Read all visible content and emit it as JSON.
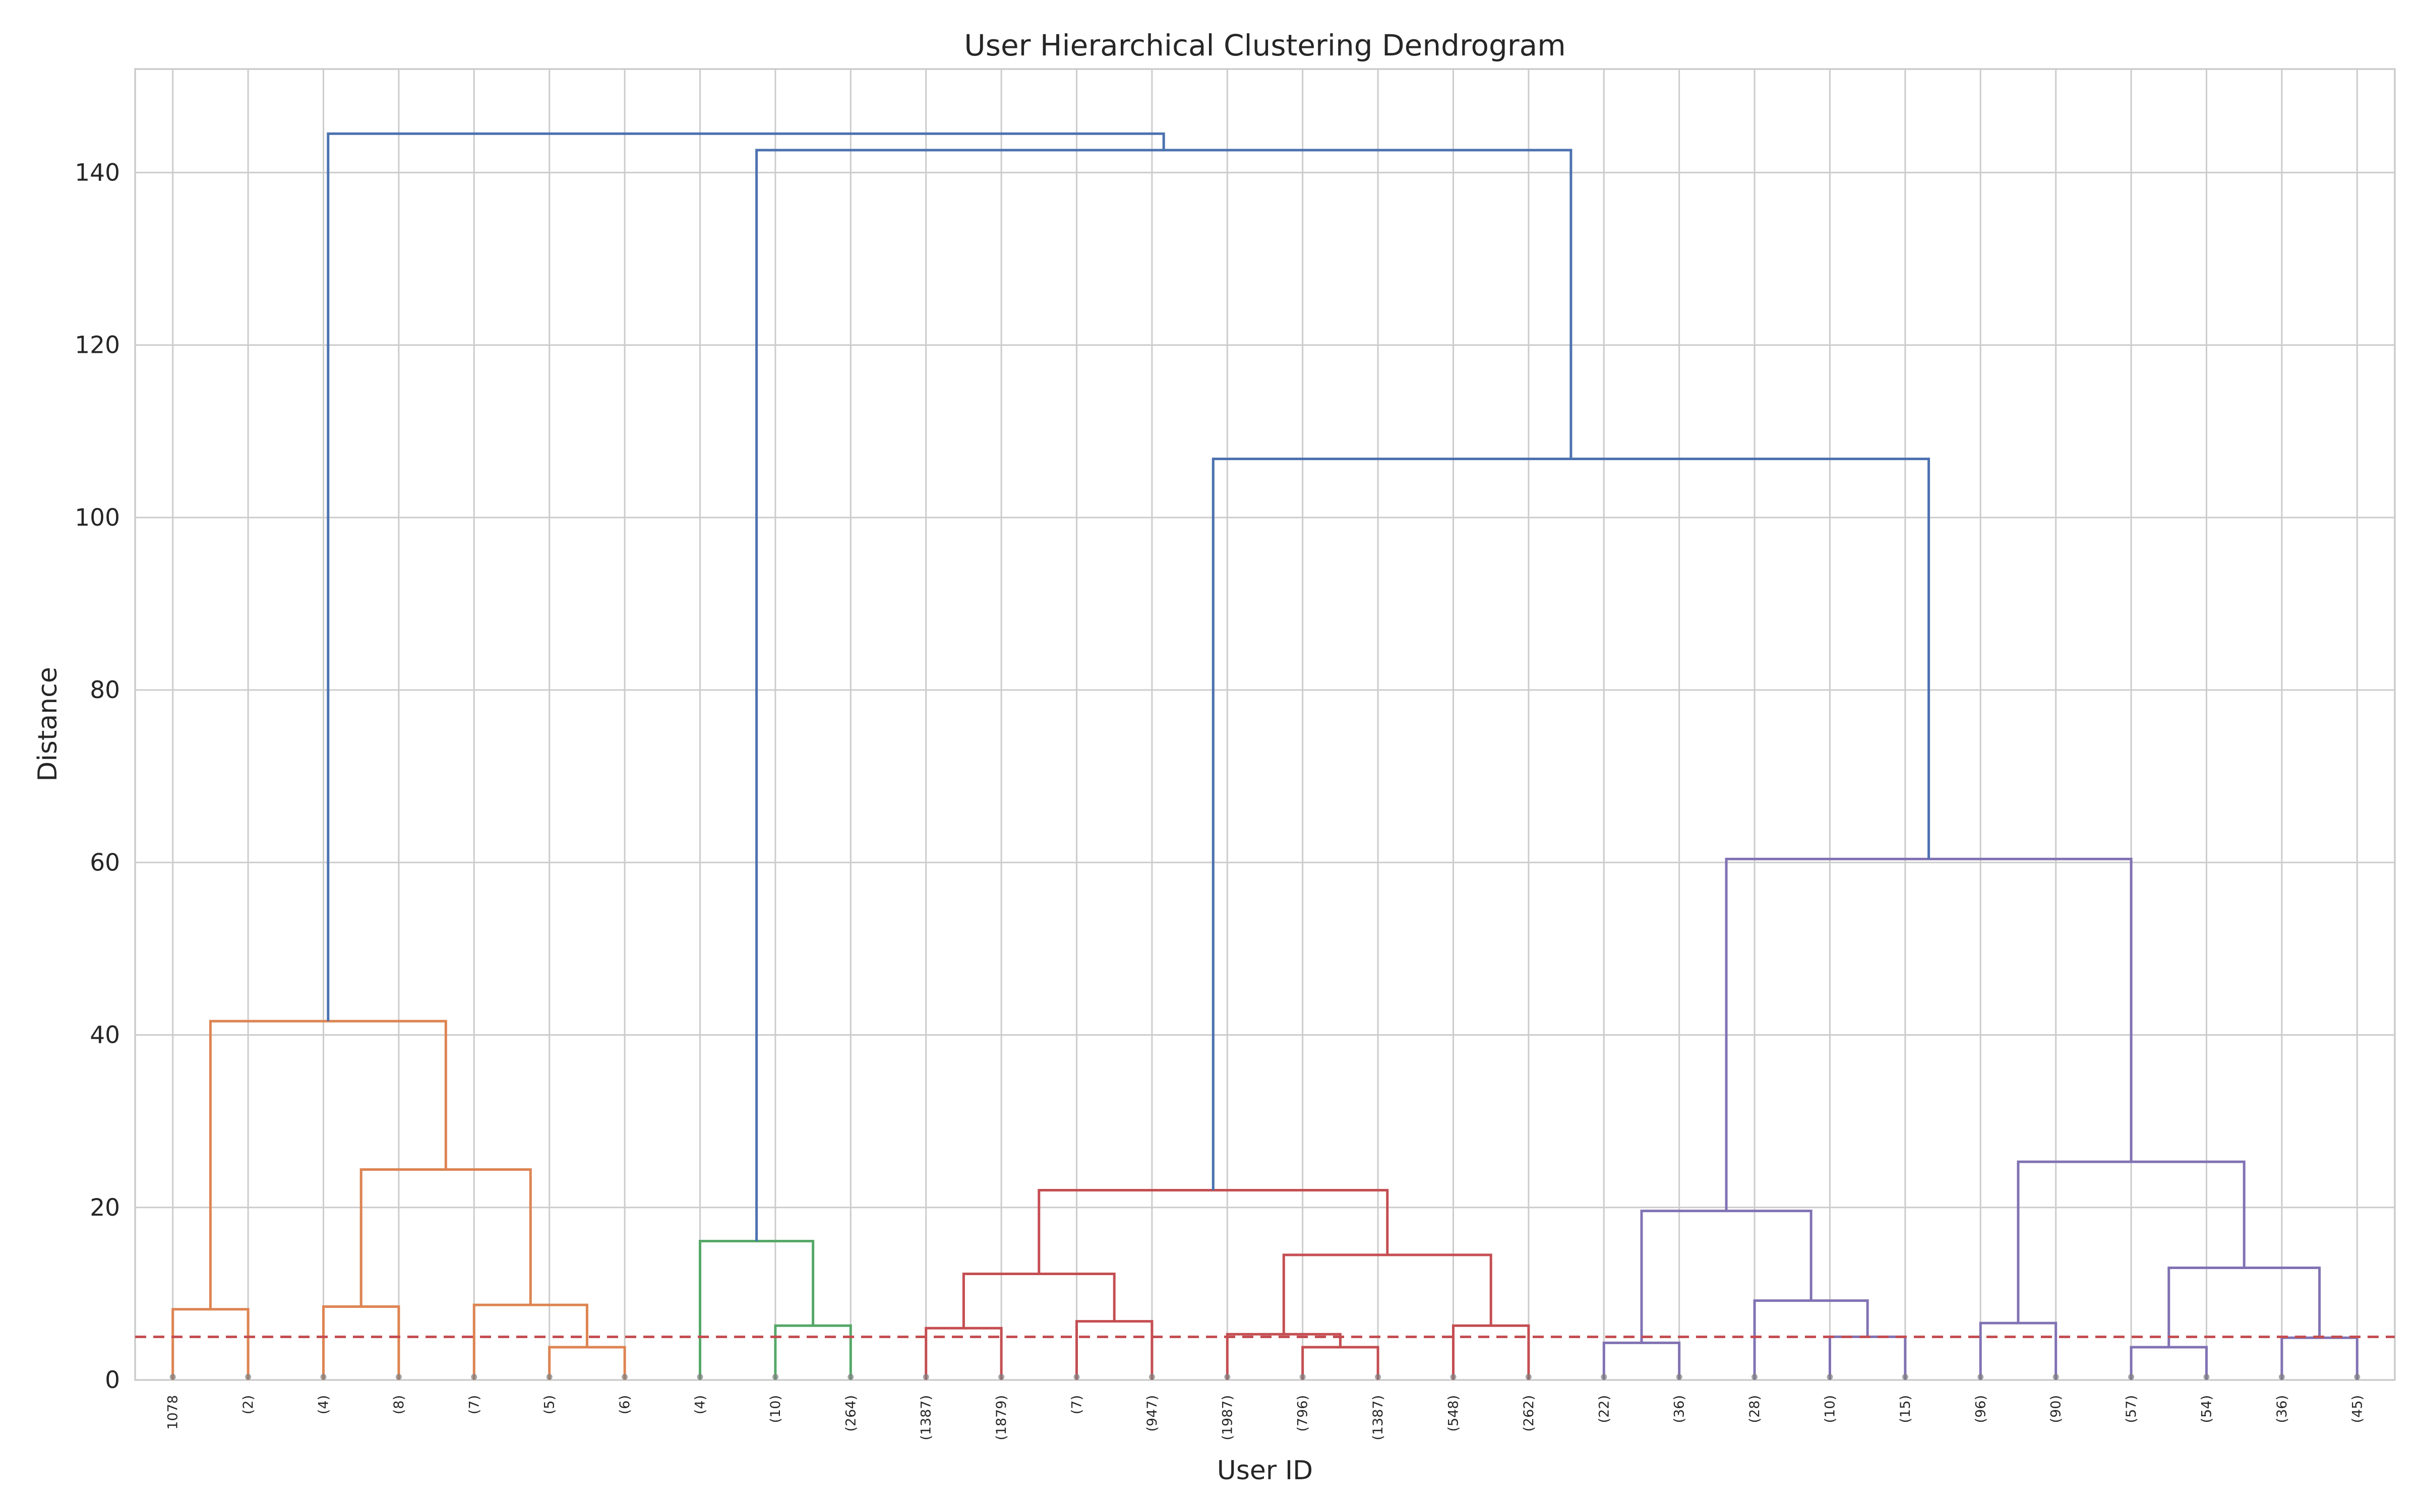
{
  "chart_data": {
    "type": "dendrogram",
    "title": "User Hierarchical Clustering Dendrogram",
    "xlabel": "User ID",
    "ylabel": "Distance",
    "ylim": [
      0,
      152
    ],
    "yticks": [
      0,
      20,
      40,
      60,
      80,
      100,
      120,
      140
    ],
    "grid": true,
    "leaf_labels": [
      "1078",
      "(2)",
      "(4)",
      "(8)",
      "(7)",
      "(5)",
      "(6)",
      "(4)",
      "(10)",
      "(264)",
      "(1387)",
      "(1879)",
      "(7)",
      "(947)",
      "(1987)",
      "(796)",
      "(1387)",
      "(548)",
      "(262)",
      "(22)",
      "(36)",
      "(28)",
      "(10)",
      "(15)",
      "(96)",
      "(90)",
      "(57)",
      "(54)",
      "(36)",
      "(45)"
    ],
    "threshold": {
      "value": 5,
      "color": "#c44e52",
      "style": "dashed"
    },
    "cluster_colors": {
      "above_threshold": "#4c72b0",
      "c1": "#dd8452",
      "c2": "#55a868",
      "c3": "#c44e52",
      "c4": "#8172b3"
    },
    "links": [
      {
        "x": [
          5,
          5,
          15,
          15
        ],
        "y": [
          0,
          8.2,
          8.2,
          0
        ],
        "color": "c1"
      },
      {
        "x": [
          25,
          25,
          35,
          35
        ],
        "y": [
          0,
          8.5,
          8.5,
          0
        ],
        "color": "c1"
      },
      {
        "x": [
          55,
          55,
          65,
          65
        ],
        "y": [
          0,
          3.8,
          3.8,
          0
        ],
        "color": "c1"
      },
      {
        "x": [
          45,
          45,
          60,
          60
        ],
        "y": [
          0,
          8.7,
          8.7,
          3.8
        ],
        "color": "c1"
      },
      {
        "x": [
          30,
          30,
          52.5,
          52.5
        ],
        "y": [
          8.5,
          24.4,
          24.4,
          8.7
        ],
        "color": "c1"
      },
      {
        "x": [
          10,
          10,
          41.25,
          41.25
        ],
        "y": [
          8.2,
          41.6,
          41.6,
          24.4
        ],
        "color": "c1"
      },
      {
        "x": [
          85,
          85,
          95,
          95
        ],
        "y": [
          0,
          6.3,
          6.3,
          0
        ],
        "color": "c2"
      },
      {
        "x": [
          75,
          75,
          90,
          90
        ],
        "y": [
          0,
          16.1,
          16.1,
          6.3
        ],
        "color": "c2"
      },
      {
        "x": [
          105,
          105,
          115,
          115
        ],
        "y": [
          0,
          6.0,
          6.0,
          0
        ],
        "color": "c3"
      },
      {
        "x": [
          125,
          125,
          135,
          135
        ],
        "y": [
          0,
          6.8,
          6.8,
          0
        ],
        "color": "c3"
      },
      {
        "x": [
          110,
          110,
          130,
          130
        ],
        "y": [
          6.0,
          12.3,
          12.3,
          6.8
        ],
        "color": "c3"
      },
      {
        "x": [
          155,
          155,
          165,
          165
        ],
        "y": [
          0,
          3.8,
          3.8,
          0
        ],
        "color": "c3"
      },
      {
        "x": [
          145,
          145,
          160,
          160
        ],
        "y": [
          0,
          5.3,
          5.3,
          3.8
        ],
        "color": "c3"
      },
      {
        "x": [
          175,
          175,
          185,
          185
        ],
        "y": [
          0,
          6.3,
          6.3,
          0
        ],
        "color": "c3"
      },
      {
        "x": [
          152.5,
          152.5,
          180,
          180
        ],
        "y": [
          5.3,
          14.5,
          14.5,
          6.3
        ],
        "color": "c3"
      },
      {
        "x": [
          120,
          120,
          166.25,
          166.25
        ],
        "y": [
          12.3,
          22.0,
          22.0,
          14.5
        ],
        "color": "c3"
      },
      {
        "x": [
          195,
          195,
          205,
          205
        ],
        "y": [
          0,
          4.3,
          4.3,
          0
        ],
        "color": "c4"
      },
      {
        "x": [
          225,
          225,
          235,
          235
        ],
        "y": [
          0,
          5.0,
          5.0,
          0
        ],
        "color": "c4"
      },
      {
        "x": [
          215,
          215,
          230,
          230
        ],
        "y": [
          0,
          9.2,
          9.2,
          5.0
        ],
        "color": "c4"
      },
      {
        "x": [
          200,
          200,
          222.5,
          222.5
        ],
        "y": [
          4.3,
          19.6,
          19.6,
          9.2
        ],
        "color": "c4"
      },
      {
        "x": [
          245,
          245,
          255,
          255
        ],
        "y": [
          0,
          6.6,
          6.6,
          0
        ],
        "color": "c4"
      },
      {
        "x": [
          265,
          265,
          275,
          275
        ],
        "y": [
          0,
          3.8,
          3.8,
          0
        ],
        "color": "c4"
      },
      {
        "x": [
          285,
          285,
          295,
          295
        ],
        "y": [
          0,
          4.9,
          4.9,
          0
        ],
        "color": "c4"
      },
      {
        "x": [
          270,
          270,
          290,
          290
        ],
        "y": [
          3.8,
          13.0,
          13.0,
          4.9
        ],
        "color": "c4"
      },
      {
        "x": [
          250,
          250,
          280,
          280
        ],
        "y": [
          6.6,
          25.3,
          25.3,
          13.0
        ],
        "color": "c4"
      },
      {
        "x": [
          211.25,
          211.25,
          265,
          265
        ],
        "y": [
          19.6,
          60.4,
          60.4,
          25.3
        ],
        "color": "c4"
      },
      {
        "x": [
          143.125,
          143.125,
          238.125,
          238.125
        ],
        "y": [
          22.0,
          106.8,
          106.8,
          60.4
        ],
        "color": "above_threshold"
      },
      {
        "x": [
          82.5,
          82.5,
          190.625,
          190.625
        ],
        "y": [
          16.1,
          142.6,
          142.6,
          106.8
        ],
        "color": "above_threshold"
      },
      {
        "x": [
          25.625,
          25.625,
          136.5625,
          136.5625
        ],
        "y": [
          41.6,
          144.5,
          144.5,
          142.6
        ],
        "color": "above_threshold"
      }
    ]
  }
}
